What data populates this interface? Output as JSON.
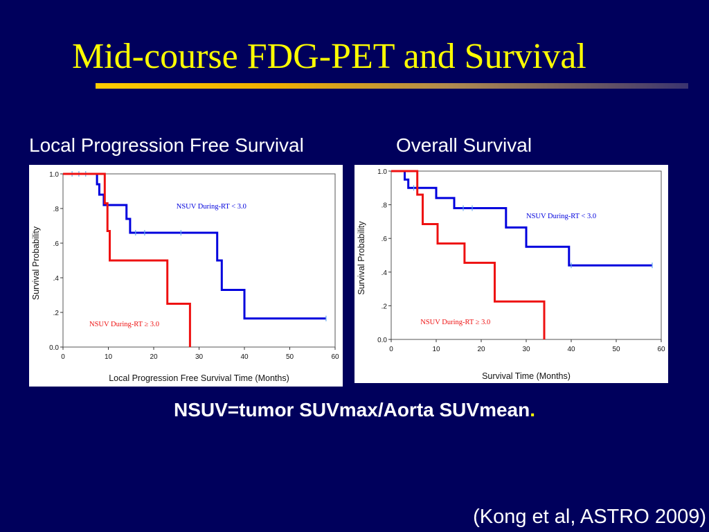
{
  "slide": {
    "title": "Mid-course FDG-PET and Survival",
    "footnote": "NSUV=tumor SUVmax/Aorta SUVmean",
    "footnote_dot": ".",
    "citation": "(Kong et al, ASTRO 2009)",
    "title_color": "#ffff00",
    "background_color": "#00005c"
  },
  "chart_data": [
    {
      "type": "line",
      "step": "post",
      "title": "Local Progression Free Survival",
      "xlabel": "Local Progression Free Survival Time (Months)",
      "ylabel": "Survival Probability",
      "xlim": [
        0,
        60
      ],
      "ylim": [
        0,
        1
      ],
      "x_ticks": [
        "0",
        "10",
        "20",
        "30",
        "40",
        "50",
        "60"
      ],
      "y_ticks": [
        "0.0",
        ".2",
        ".4",
        ".6",
        ".8",
        "1.0"
      ],
      "grid": false,
      "series": [
        {
          "name": "NSUV During-RT < 3.0",
          "color": "#0000dd",
          "label_pos": [
            25,
            0.8
          ],
          "points": [
            [
              0,
              1.0
            ],
            [
              7.5,
              1.0
            ],
            [
              7.5,
              0.94
            ],
            [
              8,
              0.94
            ],
            [
              8,
              0.88
            ],
            [
              9,
              0.88
            ],
            [
              9,
              0.82
            ],
            [
              14,
              0.82
            ],
            [
              14,
              0.74
            ],
            [
              14.8,
              0.74
            ],
            [
              14.8,
              0.66
            ],
            [
              34,
              0.66
            ],
            [
              34,
              0.5
            ],
            [
              35,
              0.5
            ],
            [
              35,
              0.33
            ],
            [
              40,
              0.33
            ],
            [
              40,
              0.165
            ],
            [
              58,
              0.165
            ]
          ],
          "censored": [
            [
              2,
              1.0
            ],
            [
              3.5,
              1.0
            ],
            [
              5,
              1.0
            ],
            [
              16,
              0.66
            ],
            [
              18,
              0.66
            ],
            [
              26,
              0.66
            ],
            [
              58,
              0.165
            ]
          ]
        },
        {
          "name": "NSUV During-RT ≥ 3.0",
          "color": "#ee1111",
          "label_pos": [
            5.8,
            0.12
          ],
          "points": [
            [
              0,
              1.0
            ],
            [
              9.2,
              1.0
            ],
            [
              9.2,
              0.83
            ],
            [
              9.8,
              0.83
            ],
            [
              9.8,
              0.67
            ],
            [
              10.3,
              0.67
            ],
            [
              10.3,
              0.5
            ],
            [
              23,
              0.5
            ],
            [
              23,
              0.25
            ],
            [
              28,
              0.25
            ],
            [
              28,
              0.0
            ]
          ],
          "censored": []
        }
      ]
    },
    {
      "type": "line",
      "step": "post",
      "title": "Overall Survival",
      "xlabel": "Survival Time (Months)",
      "ylabel": "Survival Probability",
      "xlim": [
        0,
        60
      ],
      "ylim": [
        0,
        1
      ],
      "x_ticks": [
        "0",
        "10",
        "20",
        "30",
        "40",
        "50",
        "60"
      ],
      "y_ticks": [
        "0.0",
        ".2",
        ".4",
        ".6",
        ".8",
        "1.0"
      ],
      "grid": false,
      "series": [
        {
          "name": "NSUV During-RT < 3.0",
          "color": "#0000dd",
          "label_pos": [
            30,
            0.72
          ],
          "points": [
            [
              0,
              1.0
            ],
            [
              3,
              1.0
            ],
            [
              3,
              0.95
            ],
            [
              3.8,
              0.95
            ],
            [
              3.8,
              0.9
            ],
            [
              10,
              0.9
            ],
            [
              10,
              0.84
            ],
            [
              14,
              0.84
            ],
            [
              14,
              0.78
            ],
            [
              25.5,
              0.78
            ],
            [
              25.5,
              0.665
            ],
            [
              30,
              0.665
            ],
            [
              30,
              0.55
            ],
            [
              39.5,
              0.55
            ],
            [
              39.5,
              0.44
            ],
            [
              58,
              0.44
            ]
          ],
          "censored": [
            [
              5,
              0.9
            ],
            [
              16,
              0.78
            ],
            [
              18,
              0.78
            ],
            [
              40,
              0.44
            ],
            [
              58,
              0.44
            ]
          ]
        },
        {
          "name": "NSUV During-RT ≥ 3.0",
          "color": "#ee1111",
          "label_pos": [
            6.5,
            0.09
          ],
          "points": [
            [
              0,
              1.0
            ],
            [
              5.8,
              1.0
            ],
            [
              5.8,
              0.86
            ],
            [
              7,
              0.86
            ],
            [
              7,
              0.685
            ],
            [
              10.3,
              0.685
            ],
            [
              10.3,
              0.57
            ],
            [
              16.3,
              0.57
            ],
            [
              16.3,
              0.455
            ],
            [
              23,
              0.455
            ],
            [
              23,
              0.225
            ],
            [
              34,
              0.225
            ],
            [
              34,
              0.0
            ]
          ],
          "censored": []
        }
      ]
    }
  ]
}
